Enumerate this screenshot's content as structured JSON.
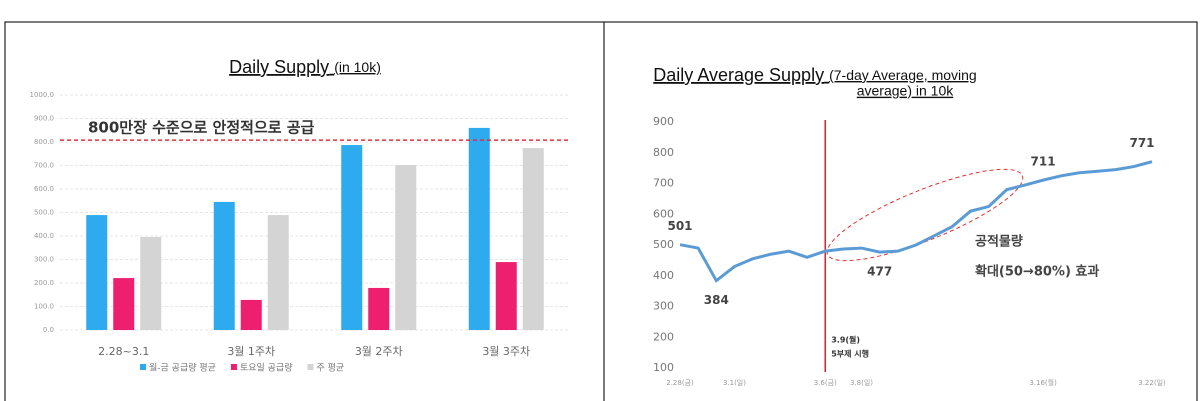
{
  "chart_data": [
    {
      "type": "bar",
      "title": "Daily Supply",
      "subtitle": "(in 10k)",
      "categories": [
        "2.28~3.1",
        "3월 1주차",
        "3월 2주차",
        "3월 3주차"
      ],
      "series": [
        {
          "name": "월-금 공급량 평균",
          "color": "#2eaaee",
          "values": [
            489,
            545,
            787,
            860
          ]
        },
        {
          "name": "토요일 공급량",
          "color": "#ee1f6f",
          "values": [
            221,
            128,
            179,
            289
          ]
        },
        {
          "name": "주 평균",
          "color": "#d4d4d4",
          "values": [
            396,
            489,
            702,
            774
          ]
        }
      ],
      "ylim": [
        0,
        1000
      ],
      "yticks": [
        {
          "value": 0,
          "label": "0.0"
        },
        {
          "value": 100,
          "label": "100.0"
        },
        {
          "value": 200,
          "label": "200.0"
        },
        {
          "value": 300,
          "label": "300.0"
        },
        {
          "value": 400,
          "label": "400.0"
        },
        {
          "value": 500,
          "label": "500.0"
        },
        {
          "value": 600,
          "label": "600.0"
        },
        {
          "value": 700,
          "label": "700.0"
        },
        {
          "value": 800,
          "label": "800.0"
        },
        {
          "value": 900,
          "label": "900.0"
        },
        {
          "value": 1000,
          "label": "1000.0"
        }
      ],
      "grid": true,
      "legend": "bottom",
      "reference_line": {
        "value": 808,
        "color": "#e0303a",
        "label": "800만장 수준으로 안정적으로 공급"
      }
    },
    {
      "type": "line",
      "title": "Daily Average Supply",
      "subtitle_lines": [
        "(7-day Average, moving",
        "average) in 10k"
      ],
      "categories": [
        "2.28(금)",
        null,
        null,
        "3.1(일)",
        null,
        null,
        null,
        null,
        "3.6(금)",
        null,
        "3.8(일)",
        null,
        null,
        null,
        null,
        null,
        null,
        null,
        null,
        null,
        "3.16(월)",
        null,
        null,
        null,
        null,
        null,
        "3.22(일)"
      ],
      "values": [
        501,
        490,
        384,
        430,
        455,
        470,
        480,
        460,
        480,
        487,
        490,
        477,
        480,
        500,
        530,
        560,
        610,
        625,
        680,
        695,
        711,
        725,
        735,
        740,
        745,
        755,
        771
      ],
      "value_labels": [
        "501",
        null,
        "384",
        null,
        null,
        null,
        null,
        null,
        null,
        null,
        null,
        "477",
        null,
        null,
        null,
        null,
        null,
        null,
        null,
        null,
        "711",
        null,
        null,
        null,
        null,
        null,
        "771"
      ],
      "color": "#5b9bd5",
      "ylim": [
        100,
        900
      ],
      "yticks": [
        100,
        200,
        300,
        400,
        500,
        600,
        700,
        800,
        900
      ],
      "event_line": {
        "at": "3.6(금)",
        "color": "#d9202a",
        "labels": [
          "3.9(월)",
          "5부제 시행"
        ]
      },
      "annotations": [
        "공적물량",
        "확대(50→80%) 효과"
      ]
    }
  ]
}
